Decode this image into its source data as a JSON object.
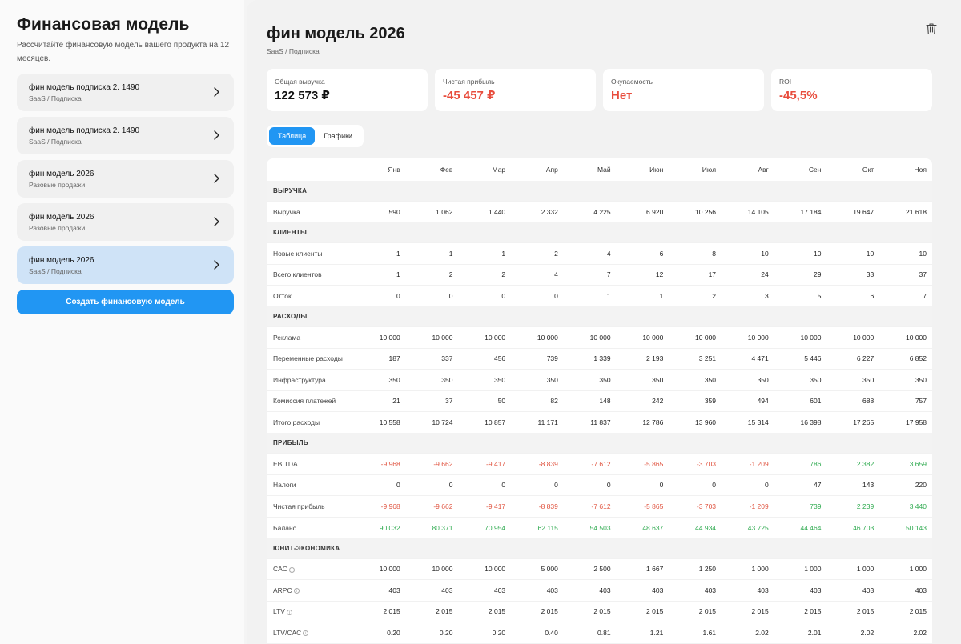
{
  "sidebar": {
    "title": "Финансовая модель",
    "description": "Рассчитайте финансовую модель вашего продукта на 12 месяцев.",
    "models": [
      {
        "name": "фин модель подписка 2. 1490",
        "type": "SaaS / Подписка",
        "active": false
      },
      {
        "name": "фин модель подписка 2. 1490",
        "type": "SaaS / Подписка",
        "active": false
      },
      {
        "name": "фин модель 2026",
        "type": "Разовые продажи",
        "active": false
      },
      {
        "name": "фин модель 2026",
        "type": "Разовые продажи",
        "active": false
      },
      {
        "name": "фин модель 2026",
        "type": "SaaS / Подписка",
        "active": true
      }
    ],
    "create_button": "Создать финансовую модель"
  },
  "main": {
    "title": "фин модель 2026",
    "subtitle": "SaaS / Подписка",
    "kpis": [
      {
        "label": "Общая выручка",
        "value": "122 573 ₽",
        "negative": false
      },
      {
        "label": "Чистая прибыль",
        "value": "-45 457 ₽",
        "negative": true
      },
      {
        "label": "Окупаемость",
        "value": "Нет",
        "negative": true
      },
      {
        "label": "ROI",
        "value": "-45,5%",
        "negative": true
      }
    ],
    "tabs": [
      {
        "label": "Таблица",
        "active": true
      },
      {
        "label": "Графики",
        "active": false
      }
    ],
    "months": [
      "Янв",
      "Фев",
      "Мар",
      "Апр",
      "Май",
      "Июн",
      "Июл",
      "Авг",
      "Сен",
      "Окт",
      "Ноя"
    ],
    "sections": [
      {
        "title": "ВЫРУЧКА",
        "rows": [
          {
            "label": "Выручка",
            "values": [
              "590",
              "1 062",
              "1 440",
              "2 332",
              "4 225",
              "6 920",
              "10 256",
              "14 105",
              "17 184",
              "19 647",
              "21 618"
            ]
          }
        ]
      },
      {
        "title": "КЛИЕНТЫ",
        "rows": [
          {
            "label": "Новые клиенты",
            "values": [
              "1",
              "1",
              "1",
              "2",
              "4",
              "6",
              "8",
              "10",
              "10",
              "10",
              "10"
            ]
          },
          {
            "label": "Всего клиентов",
            "values": [
              "1",
              "2",
              "2",
              "4",
              "7",
              "12",
              "17",
              "24",
              "29",
              "33",
              "37"
            ]
          },
          {
            "label": "Отток",
            "values": [
              "0",
              "0",
              "0",
              "0",
              "1",
              "1",
              "2",
              "3",
              "5",
              "6",
              "7"
            ]
          }
        ]
      },
      {
        "title": "РАСХОДЫ",
        "rows": [
          {
            "label": "Реклама",
            "values": [
              "10 000",
              "10 000",
              "10 000",
              "10 000",
              "10 000",
              "10 000",
              "10 000",
              "10 000",
              "10 000",
              "10 000",
              "10 000"
            ]
          },
          {
            "label": "Переменные расходы",
            "values": [
              "187",
              "337",
              "456",
              "739",
              "1 339",
              "2 193",
              "3 251",
              "4 471",
              "5 446",
              "6 227",
              "6 852"
            ]
          },
          {
            "label": "Инфраструктура",
            "values": [
              "350",
              "350",
              "350",
              "350",
              "350",
              "350",
              "350",
              "350",
              "350",
              "350",
              "350"
            ]
          },
          {
            "label": "Комиссия платежей",
            "values": [
              "21",
              "37",
              "50",
              "82",
              "148",
              "242",
              "359",
              "494",
              "601",
              "688",
              "757"
            ]
          },
          {
            "label": "Итого расходы",
            "values": [
              "10 558",
              "10 724",
              "10 857",
              "11 171",
              "11 837",
              "12 786",
              "13 960",
              "15 314",
              "16 398",
              "17 265",
              "17 958"
            ]
          }
        ]
      },
      {
        "title": "ПРИБЫЛЬ",
        "rows": [
          {
            "label": "EBITDA",
            "colored": true,
            "values": [
              "-9 968",
              "-9 662",
              "-9 417",
              "-8 839",
              "-7 612",
              "-5 865",
              "-3 703",
              "-1 209",
              "786",
              "2 382",
              "3 659"
            ]
          },
          {
            "label": "Налоги",
            "values": [
              "0",
              "0",
              "0",
              "0",
              "0",
              "0",
              "0",
              "0",
              "47",
              "143",
              "220"
            ]
          },
          {
            "label": "Чистая прибыль",
            "colored": true,
            "values": [
              "-9 968",
              "-9 662",
              "-9 417",
              "-8 839",
              "-7 612",
              "-5 865",
              "-3 703",
              "-1 209",
              "739",
              "2 239",
              "3 440"
            ]
          },
          {
            "label": "Баланс",
            "colored": true,
            "values": [
              "90 032",
              "80 371",
              "70 954",
              "62 115",
              "54 503",
              "48 637",
              "44 934",
              "43 725",
              "44 464",
              "46 703",
              "50 143"
            ]
          }
        ]
      },
      {
        "title": "ЮНИТ-ЭКОНОМИКА",
        "rows": [
          {
            "label": "CAC",
            "info": true,
            "values": [
              "10 000",
              "10 000",
              "10 000",
              "5 000",
              "2 500",
              "1 667",
              "1 250",
              "1 000",
              "1 000",
              "1 000",
              "1 000"
            ]
          },
          {
            "label": "ARPC",
            "info": true,
            "values": [
              "403",
              "403",
              "403",
              "403",
              "403",
              "403",
              "403",
              "403",
              "403",
              "403",
              "403"
            ]
          },
          {
            "label": "LTV",
            "info": true,
            "values": [
              "2 015",
              "2 015",
              "2 015",
              "2 015",
              "2 015",
              "2 015",
              "2 015",
              "2 015",
              "2 015",
              "2 015",
              "2 015"
            ]
          },
          {
            "label": "LTV/CAC",
            "info": true,
            "values": [
              "0.20",
              "0.20",
              "0.20",
              "0.40",
              "0.81",
              "1.21",
              "1.61",
              "2.02",
              "2.01",
              "2.02",
              "2.02"
            ]
          }
        ]
      }
    ]
  },
  "icons": {
    "chevron": "chevron-right-icon",
    "trash": "trash-icon",
    "info": "info-icon"
  },
  "colors": {
    "accent": "#2196f3",
    "negative": "#e0533f",
    "positive": "#2eaa4f",
    "active_item": "#cfe3f7"
  }
}
